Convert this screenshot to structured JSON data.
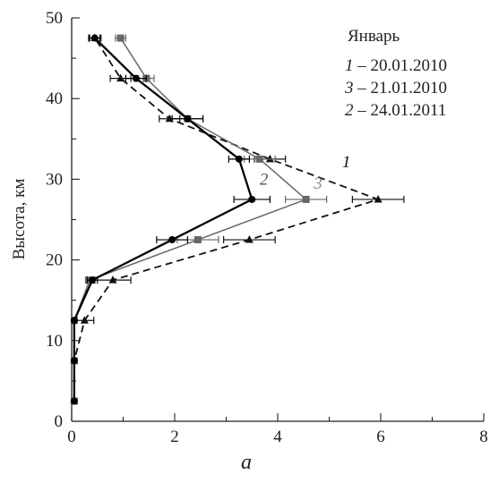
{
  "chart_data": {
    "type": "line",
    "ylabel": "Высота, км",
    "xlabel": "",
    "panel_label": "a",
    "xlim": [
      0,
      8
    ],
    "ylim": [
      0,
      50
    ],
    "x_ticks": [
      0,
      2,
      4,
      6,
      8
    ],
    "y_ticks": [
      0,
      10,
      20,
      30,
      40,
      50
    ],
    "legend": {
      "title": "Январь",
      "placement": "top-right",
      "entries": [
        {
          "num": "1",
          "text": " – 20.01.2010"
        },
        {
          "num": "3",
          "text": " – 21.01.2010"
        },
        {
          "num": "2",
          "text": " – 24.01.2011"
        }
      ]
    },
    "series": [
      {
        "label": "1",
        "color": "#111111",
        "style": "dashed",
        "marker": "triangle",
        "points": [
          {
            "x": 0.05,
            "y": 2.5,
            "err": 0
          },
          {
            "x": 0.05,
            "y": 7.5,
            "err": 0
          },
          {
            "x": 0.25,
            "y": 12.5,
            "err": 0.18
          },
          {
            "x": 0.8,
            "y": 17.5,
            "err": 0.35
          },
          {
            "x": 3.45,
            "y": 22.5,
            "err": 0.5
          },
          {
            "x": 5.95,
            "y": 27.5,
            "err": 0.5
          },
          {
            "x": 3.85,
            "y": 32.5,
            "err": 0.3
          },
          {
            "x": 1.9,
            "y": 37.5,
            "err": 0.2
          },
          {
            "x": 0.95,
            "y": 42.5,
            "err": 0.2
          },
          {
            "x": 0.45,
            "y": 47.5,
            "err": 0.12
          }
        ]
      },
      {
        "label": "3",
        "color": "#666666",
        "style": "solid",
        "marker": "square",
        "points": [
          {
            "x": 0.05,
            "y": 2.5,
            "err": 0
          },
          {
            "x": 0.05,
            "y": 7.5,
            "err": 0
          },
          {
            "x": 0.05,
            "y": 12.5,
            "err": 0
          },
          {
            "x": 0.35,
            "y": 17.5,
            "err": 0.08
          },
          {
            "x": 2.45,
            "y": 22.5,
            "err": 0.4
          },
          {
            "x": 4.55,
            "y": 27.5,
            "err": 0.4
          },
          {
            "x": 3.65,
            "y": 32.5,
            "err": 0.3
          },
          {
            "x": 2.25,
            "y": 37.5,
            "err": 0.3
          },
          {
            "x": 1.45,
            "y": 42.5,
            "err": 0.15
          },
          {
            "x": 0.95,
            "y": 47.5,
            "err": 0.1
          }
        ]
      },
      {
        "label": "2",
        "color": "#000000",
        "style": "solid-bold",
        "marker": "circle",
        "points": [
          {
            "x": 0.05,
            "y": 2.5,
            "err": 0
          },
          {
            "x": 0.05,
            "y": 7.5,
            "err": 0
          },
          {
            "x": 0.05,
            "y": 12.5,
            "err": 0
          },
          {
            "x": 0.4,
            "y": 17.5,
            "err": 0.1
          },
          {
            "x": 1.95,
            "y": 22.5,
            "err": 0.3
          },
          {
            "x": 3.5,
            "y": 27.5,
            "err": 0.35
          },
          {
            "x": 3.25,
            "y": 32.5,
            "err": 0.2
          },
          {
            "x": 2.25,
            "y": 37.5,
            "err": 0.3
          },
          {
            "x": 1.25,
            "y": 42.5,
            "err": 0.2
          },
          {
            "x": 0.45,
            "y": 47.5,
            "err": 0.1
          }
        ]
      }
    ],
    "inline_labels": [
      {
        "text": "1",
        "color": "#111111",
        "x": 5.25,
        "y": 31.5
      },
      {
        "text": "2",
        "color": "#555555",
        "x": 3.65,
        "y": 29.3
      },
      {
        "text": "3",
        "color": "#888888",
        "x": 4.7,
        "y": 28.8
      }
    ]
  }
}
